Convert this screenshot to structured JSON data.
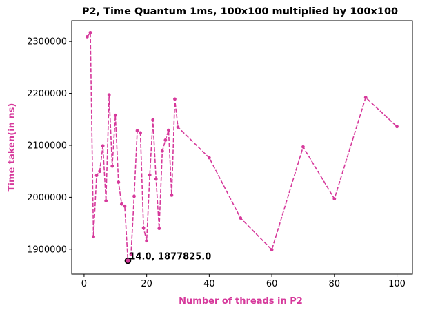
{
  "chart_data": {
    "type": "line",
    "title": "P2, Time Quantum 1ms, 100x100 multiplied by 100x100",
    "xlabel": "Number of threads in P2",
    "ylabel": "Time taken(in ns)",
    "xlim": [
      -3.95,
      104.95
    ],
    "ylim": [
      1852000,
      2340000
    ],
    "xticks": [
      0,
      20,
      40,
      60,
      80,
      100
    ],
    "yticks": [
      1900000,
      2000000,
      2100000,
      2200000,
      2300000
    ],
    "xtick_labels": [
      "0",
      "20",
      "40",
      "60",
      "80",
      "100"
    ],
    "ytick_labels": [
      "1900000",
      "2000000",
      "2100000",
      "2200000",
      "2300000"
    ],
    "grid": false,
    "legend": "none",
    "series": [
      {
        "color": "#d6399b",
        "line_style": "dashed",
        "marker": "circle",
        "x": [
          1,
          2,
          3,
          4,
          5,
          6,
          7,
          8,
          9,
          10,
          11,
          12,
          13,
          14,
          15,
          16,
          17,
          18,
          19,
          20,
          21,
          22,
          23,
          24,
          25,
          26,
          27,
          28,
          29,
          30,
          40,
          50,
          60,
          70,
          80,
          90,
          100
        ],
        "y": [
          2309000,
          2317000,
          1924000,
          2042000,
          2050000,
          2099000,
          1993000,
          2197000,
          2060000,
          2158000,
          2029000,
          1987000,
          1983000,
          1877825,
          1890000,
          2002000,
          2128000,
          2124000,
          1941000,
          1916000,
          2043000,
          2149000,
          2035000,
          1940000,
          2089000,
          2110000,
          2129000,
          2004000,
          2189000,
          2135000,
          2076000,
          1960000,
          1899000,
          2097000,
          1997000,
          2192000,
          2136000
        ]
      }
    ],
    "annotations": [
      {
        "x": 14.0,
        "y": 1877825,
        "text": "14.0, 1877825.0",
        "marker": "highlighted-point"
      }
    ]
  }
}
